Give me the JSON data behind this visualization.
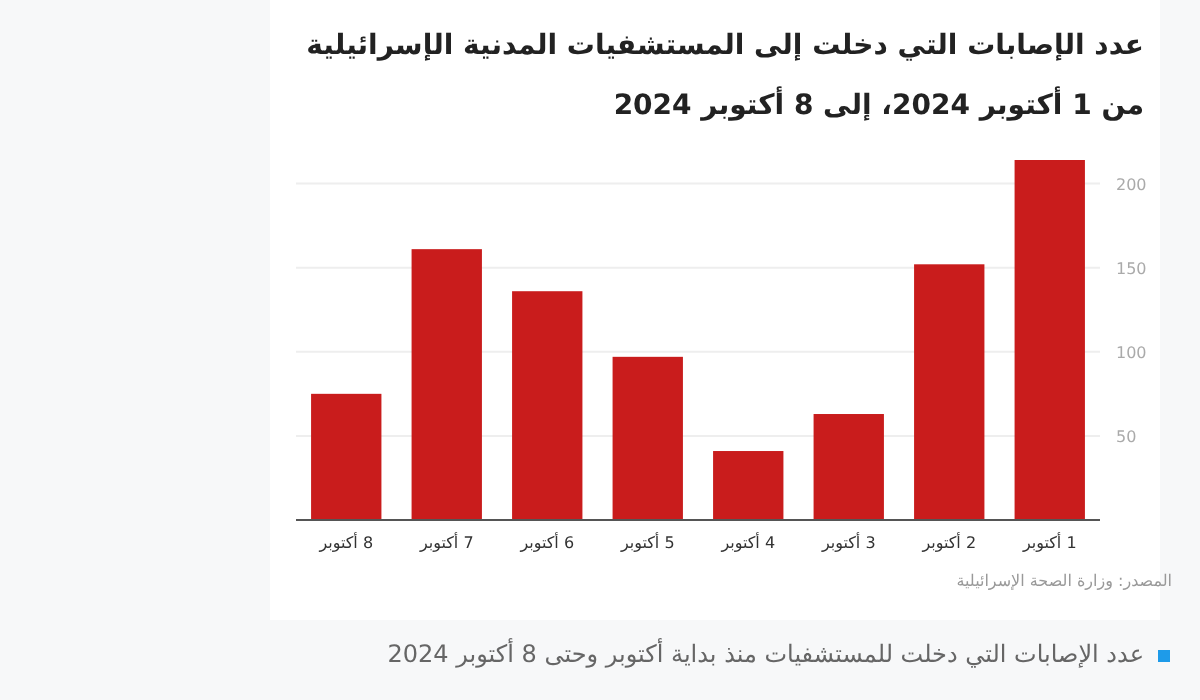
{
  "chart_data": {
    "type": "bar",
    "title": "عدد الإصابات التي دخلت إلى المستشفيات المدنية الإسرائيلية من 1 أكتوبر 2024، إلى 8 أكتوبر 2024",
    "categories": [
      "8 أكتوبر",
      "7 أكتوبر",
      "6 أكتوبر",
      "5 أكتوبر",
      "4 أكتوبر",
      "3 أكتوبر",
      "2 أكتوبر",
      "1 أكتوبر"
    ],
    "values": [
      75,
      161,
      136,
      97,
      41,
      63,
      152,
      214
    ],
    "color": "#c91c1c",
    "ylim": [
      0,
      214
    ],
    "yticks": [
      50,
      100,
      150,
      200
    ],
    "grid": "y",
    "annotations": [
      "المصدر: وزارة الصحة الإسرائيلية",
      "عدد الإصابات التي دخلت للمستشفيات منذ بداية أكتوبر وحتى 8 أكتوبر 2024"
    ]
  }
}
